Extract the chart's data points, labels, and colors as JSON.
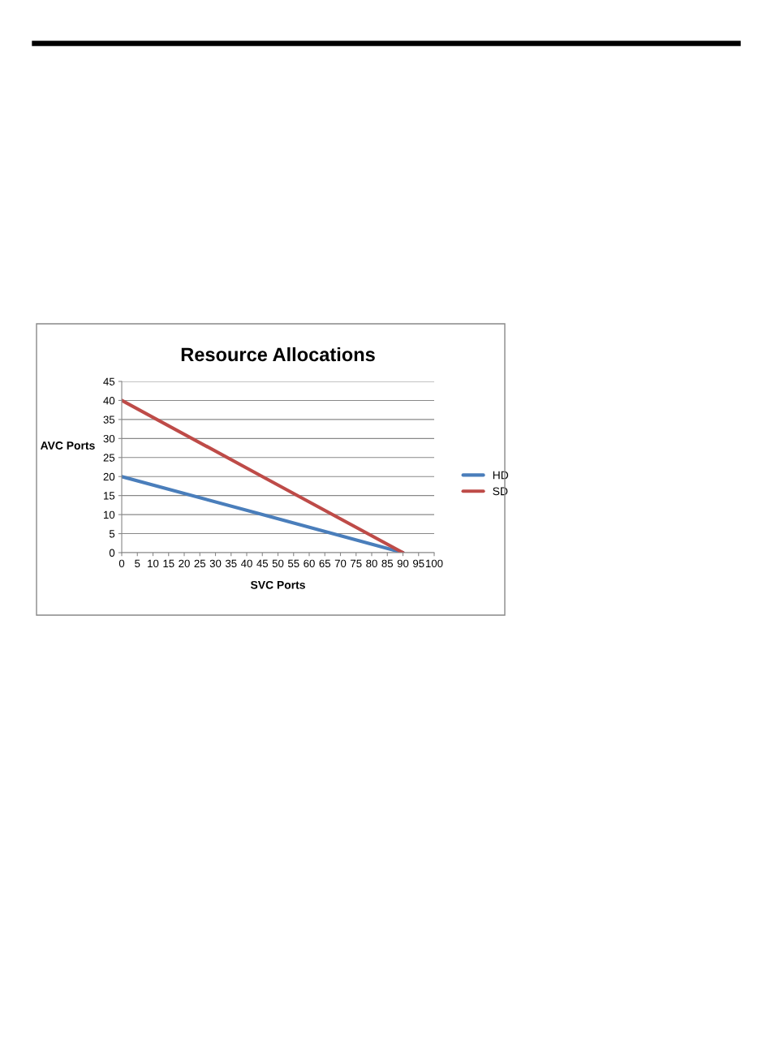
{
  "chart_data": {
    "type": "line",
    "title": "Resource Allocations",
    "xlabel": "SVC Ports",
    "ylabel": "AVC Ports",
    "series": [
      {
        "name": "HD",
        "color": "#4a7ebb",
        "x": [
          0,
          45,
          90
        ],
        "values": [
          20,
          10,
          0
        ]
      },
      {
        "name": "SD",
        "color": "#be4b48",
        "x": [
          0,
          45,
          90
        ],
        "values": [
          40,
          20,
          0
        ]
      }
    ],
    "xlim": [
      0,
      100
    ],
    "xticks": [
      0,
      5,
      10,
      15,
      20,
      25,
      30,
      35,
      40,
      45,
      50,
      55,
      60,
      65,
      70,
      75,
      80,
      85,
      90,
      95,
      100
    ],
    "ylim": [
      0,
      45
    ],
    "yticks": [
      0,
      5,
      10,
      15,
      20,
      25,
      30,
      35,
      40,
      45
    ],
    "grid": "y",
    "legend": "right",
    "marker": "none",
    "line_style": "solid"
  }
}
